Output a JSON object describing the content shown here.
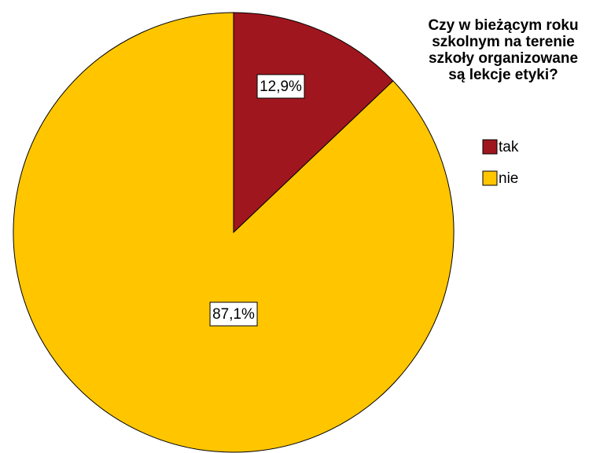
{
  "chart_data": {
    "type": "pie",
    "legend_title": "Czy w bieżącym roku szkolnym na terenie szkoły organizowane są lekcje etyki?",
    "categories": [
      "tak",
      "nie"
    ],
    "values": [
      12.9,
      87.1
    ],
    "value_labels": [
      "12,9%",
      "87,1%"
    ],
    "colors": [
      "#a0161e",
      "#ffc600"
    ],
    "legend": "right"
  }
}
